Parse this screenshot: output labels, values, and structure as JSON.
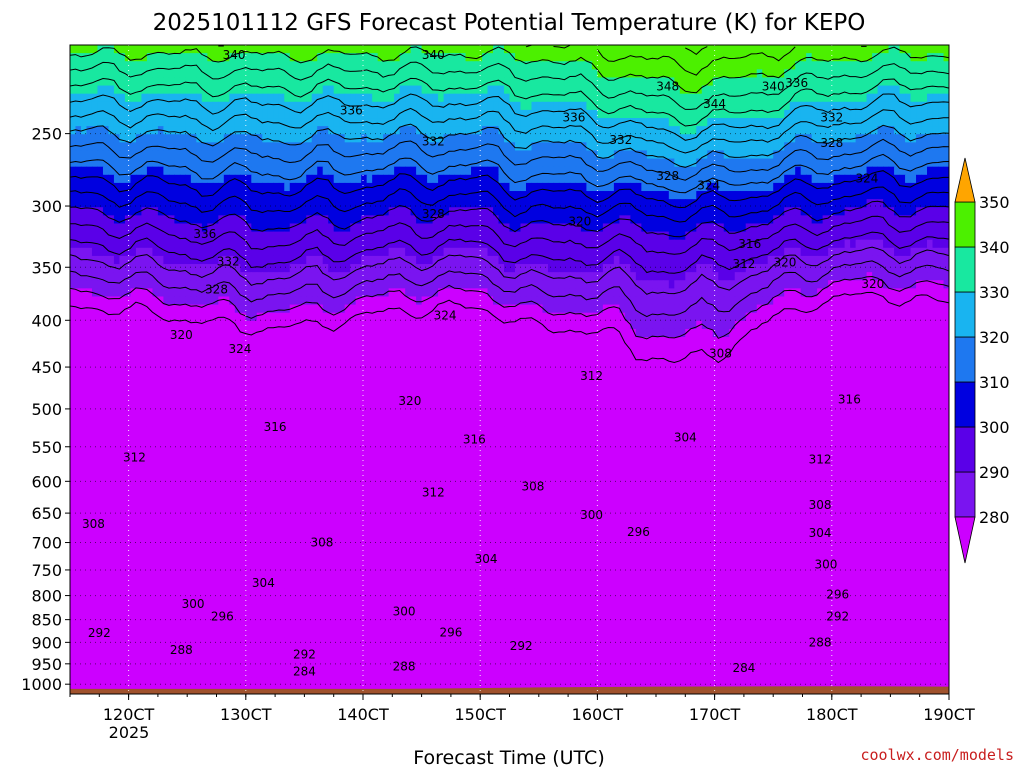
{
  "chart_data": {
    "type": "heatmap",
    "title": "2025101112 GFS Forecast Potential Temperature (K) for KEPO",
    "xlabel": "Forecast Time (UTC)",
    "ylabel": "",
    "x_ticks": [
      {
        "label": "120CT",
        "day": 12
      },
      {
        "label": "130CT",
        "day": 13
      },
      {
        "label": "140CT",
        "day": 14
      },
      {
        "label": "150CT",
        "day": 15
      },
      {
        "label": "160CT",
        "day": 16
      },
      {
        "label": "170CT",
        "day": 17
      },
      {
        "label": "180CT",
        "day": 18
      },
      {
        "label": "190CT",
        "day": 19
      }
    ],
    "x_sublabel": "2025",
    "x_range_days": [
      11.5,
      19.0
    ],
    "y_ticks": [
      250,
      300,
      350,
      400,
      450,
      500,
      550,
      600,
      650,
      700,
      750,
      800,
      850,
      900,
      950,
      1000
    ],
    "y_range_hpa": [
      200,
      1025
    ],
    "y_scale": "log",
    "grid": true,
    "colorbar": {
      "levels": [
        280,
        290,
        300,
        310,
        320,
        330,
        340,
        350
      ],
      "colors": [
        "#cc00ff",
        "#7a14f0",
        "#5a00e8",
        "#0000e0",
        "#1e78f0",
        "#19b4f0",
        "#18e8a0",
        "#4cf000",
        "#c8f000",
        "#ffff30",
        "#ffa500"
      ],
      "extend": "both"
    },
    "terrain_color": "#a0522d",
    "contour_interval_k": 4,
    "contour_labels": [
      {
        "v": "340",
        "d": 12.9,
        "p": 205
      },
      {
        "v": "340",
        "d": 14.6,
        "p": 205
      },
      {
        "v": "348",
        "d": 16.6,
        "p": 222
      },
      {
        "v": "344",
        "d": 17.0,
        "p": 232
      },
      {
        "v": "340",
        "d": 17.5,
        "p": 222
      },
      {
        "v": "336",
        "d": 17.7,
        "p": 220
      },
      {
        "v": "336",
        "d": 13.9,
        "p": 236
      },
      {
        "v": "336",
        "d": 15.8,
        "p": 240
      },
      {
        "v": "332",
        "d": 14.6,
        "p": 255
      },
      {
        "v": "332",
        "d": 16.2,
        "p": 254
      },
      {
        "v": "332",
        "d": 18.0,
        "p": 240
      },
      {
        "v": "328",
        "d": 18.0,
        "p": 256
      },
      {
        "v": "328",
        "d": 16.6,
        "p": 278
      },
      {
        "v": "324",
        "d": 16.95,
        "p": 285
      },
      {
        "v": "324",
        "d": 18.3,
        "p": 280
      },
      {
        "v": "328",
        "d": 14.6,
        "p": 306
      },
      {
        "v": "320",
        "d": 15.85,
        "p": 312
      },
      {
        "v": "336",
        "d": 12.65,
        "p": 322
      },
      {
        "v": "332",
        "d": 12.85,
        "p": 345
      },
      {
        "v": "328",
        "d": 12.75,
        "p": 370
      },
      {
        "v": "316",
        "d": 17.3,
        "p": 330
      },
      {
        "v": "312",
        "d": 17.25,
        "p": 347
      },
      {
        "v": "320",
        "d": 17.6,
        "p": 346
      },
      {
        "v": "320",
        "d": 18.35,
        "p": 365
      },
      {
        "v": "324",
        "d": 14.7,
        "p": 395
      },
      {
        "v": "320",
        "d": 12.45,
        "p": 415
      },
      {
        "v": "324",
        "d": 12.95,
        "p": 430
      },
      {
        "v": "308",
        "d": 17.05,
        "p": 435
      },
      {
        "v": "312",
        "d": 15.95,
        "p": 460
      },
      {
        "v": "320",
        "d": 14.4,
        "p": 490
      },
      {
        "v": "316",
        "d": 18.15,
        "p": 488
      },
      {
        "v": "316",
        "d": 13.25,
        "p": 523
      },
      {
        "v": "316",
        "d": 14.95,
        "p": 540
      },
      {
        "v": "304",
        "d": 16.75,
        "p": 537
      },
      {
        "v": "312",
        "d": 12.05,
        "p": 565
      },
      {
        "v": "312",
        "d": 17.9,
        "p": 568
      },
      {
        "v": "312",
        "d": 14.6,
        "p": 617
      },
      {
        "v": "308",
        "d": 15.45,
        "p": 608
      },
      {
        "v": "308",
        "d": 17.9,
        "p": 637
      },
      {
        "v": "308",
        "d": 11.7,
        "p": 668
      },
      {
        "v": "300",
        "d": 15.95,
        "p": 653
      },
      {
        "v": "296",
        "d": 16.35,
        "p": 682
      },
      {
        "v": "304",
        "d": 17.9,
        "p": 683
      },
      {
        "v": "308",
        "d": 13.65,
        "p": 700
      },
      {
        "v": "304",
        "d": 15.05,
        "p": 730
      },
      {
        "v": "300",
        "d": 17.95,
        "p": 740
      },
      {
        "v": "304",
        "d": 13.15,
        "p": 775
      },
      {
        "v": "296",
        "d": 18.05,
        "p": 798
      },
      {
        "v": "300",
        "d": 12.55,
        "p": 817
      },
      {
        "v": "296",
        "d": 12.8,
        "p": 843
      },
      {
        "v": "300",
        "d": 14.35,
        "p": 833
      },
      {
        "v": "292",
        "d": 18.05,
        "p": 843
      },
      {
        "v": "296",
        "d": 14.75,
        "p": 878
      },
      {
        "v": "292",
        "d": 11.75,
        "p": 879
      },
      {
        "v": "292",
        "d": 15.35,
        "p": 908
      },
      {
        "v": "288",
        "d": 17.9,
        "p": 900
      },
      {
        "v": "288",
        "d": 12.45,
        "p": 918
      },
      {
        "v": "292",
        "d": 13.5,
        "p": 928
      },
      {
        "v": "288",
        "d": 14.35,
        "p": 957
      },
      {
        "v": "284",
        "d": 13.5,
        "p": 968
      },
      {
        "v": "284",
        "d": 17.25,
        "p": 960
      }
    ]
  },
  "credit": "coolwx.com/models"
}
